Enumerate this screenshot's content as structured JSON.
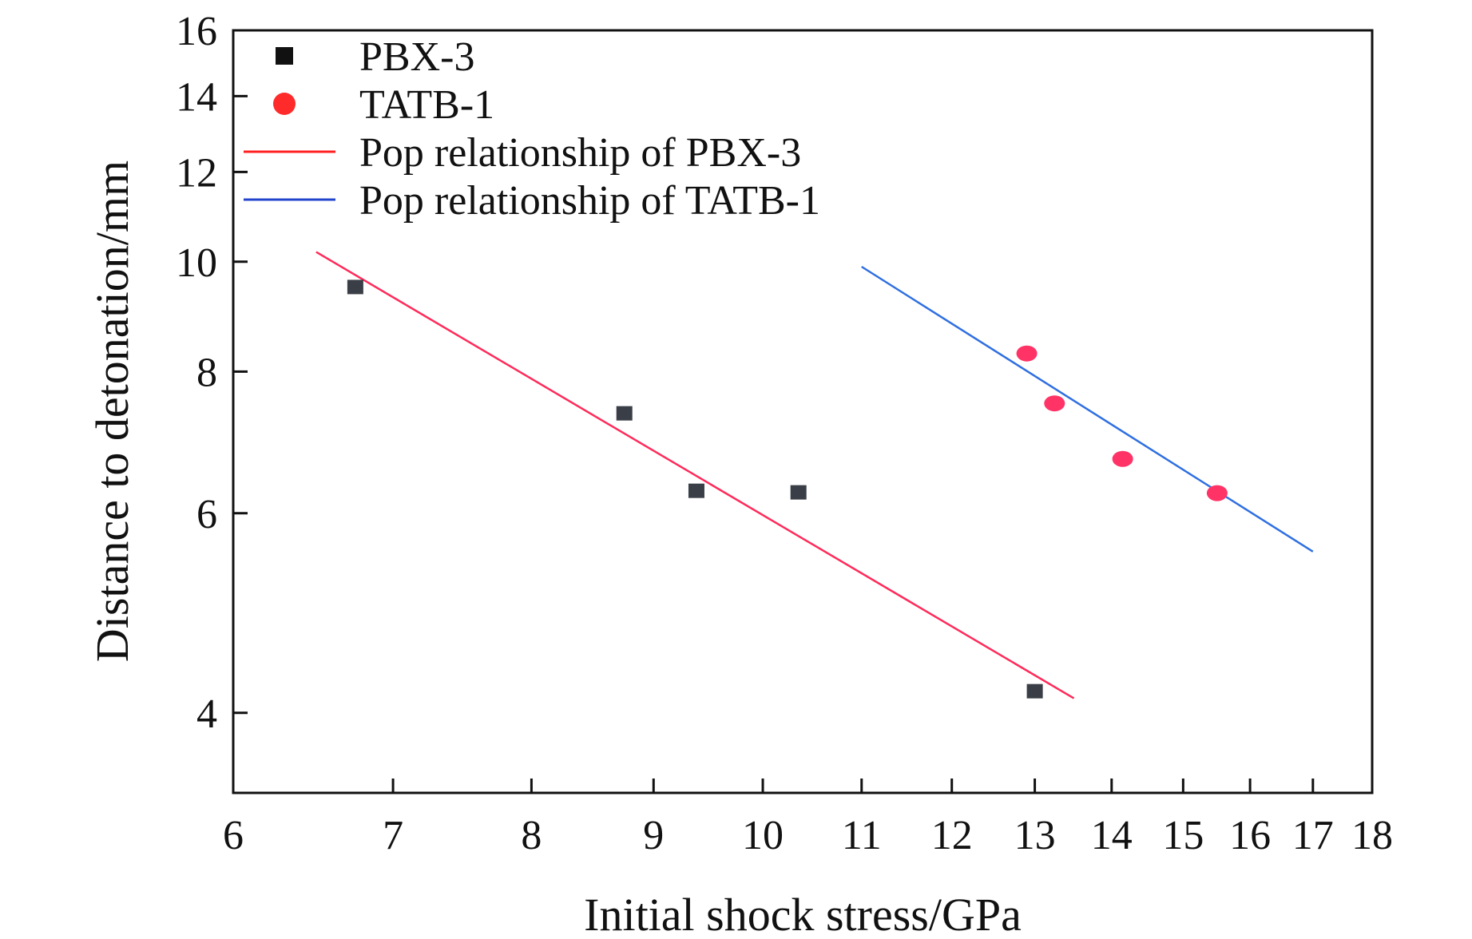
{
  "chart_data": {
    "type": "scatter",
    "title": "",
    "xlabel": "Initial shock stress/GPa",
    "ylabel": "Distance to detonation/mm",
    "xscale": "log",
    "yscale": "log",
    "xlim": [
      6,
      18
    ],
    "ylim": [
      3.4,
      16
    ],
    "xticks": [
      6,
      7,
      8,
      9,
      10,
      11,
      12,
      13,
      14,
      15,
      16,
      17,
      18
    ],
    "yticks": [
      4,
      6,
      8,
      10,
      12,
      14,
      16
    ],
    "grid": false,
    "legend_position": "top-left",
    "series": [
      {
        "name": "PBX-3",
        "kind": "scatter",
        "marker": "square",
        "color": "#3a3f47",
        "legend_color": "#111111",
        "points": [
          [
            6.75,
            9.5
          ],
          [
            8.75,
            7.35
          ],
          [
            9.38,
            6.28
          ],
          [
            10.35,
            6.26
          ],
          [
            13.0,
            4.18
          ]
        ]
      },
      {
        "name": "TATB-1",
        "kind": "scatter",
        "marker": "circle",
        "color": "#ff3366",
        "legend_color": "#ff2a2a",
        "points": [
          [
            12.9,
            8.3
          ],
          [
            13.25,
            7.5
          ],
          [
            14.15,
            6.7
          ],
          [
            15.5,
            6.25
          ]
        ]
      },
      {
        "name": "Pop relationship of PBX-3",
        "kind": "line",
        "color": "#ff2a5a",
        "legend_color": "#ff2020",
        "points": [
          [
            6.5,
            10.2
          ],
          [
            13.5,
            4.12
          ]
        ]
      },
      {
        "name": "Pop relationship of TATB-1",
        "kind": "line",
        "color": "#2f6fe0",
        "legend_color": "#2244cc",
        "points": [
          [
            11.0,
            9.9
          ],
          [
            17.0,
            5.55
          ]
        ]
      }
    ]
  }
}
